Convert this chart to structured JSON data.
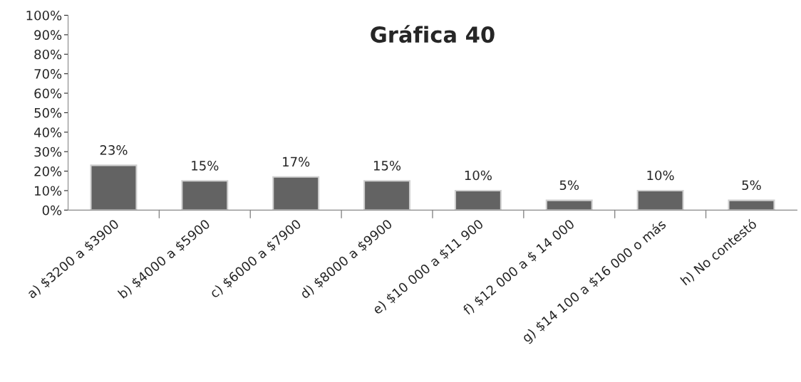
{
  "chart_data": {
    "type": "bar",
    "title": "Gráfica 40",
    "categories": [
      "a) $3200 a $3900",
      "b) $4000 a $5900",
      "c) $6000 a $7900",
      "d) $8000 a $9900",
      "e) $10 000 a $11 900",
      "f) $12 000 a $ 14 000",
      "g) $14 100 a $16 000 o más",
      "h) No contestó"
    ],
    "values": [
      23,
      15,
      17,
      15,
      10,
      5,
      10,
      5
    ],
    "value_labels": [
      "23%",
      "15%",
      "17%",
      "15%",
      "10%",
      "5%",
      "10%",
      "5%"
    ],
    "color": "#636363",
    "ylim": [
      0,
      100
    ],
    "yticks": [
      {
        "value": 0,
        "label": "0%"
      },
      {
        "value": 10,
        "label": "10%"
      },
      {
        "value": 20,
        "label": "20%"
      },
      {
        "value": 30,
        "label": "30%"
      },
      {
        "value": 40,
        "label": "40%"
      },
      {
        "value": 50,
        "label": "50%"
      },
      {
        "value": 60,
        "label": "60%"
      },
      {
        "value": 70,
        "label": "70%"
      },
      {
        "value": 80,
        "label": "80%"
      },
      {
        "value": 90,
        "label": "90%"
      },
      {
        "value": 100,
        "label": "100%"
      }
    ],
    "grid": false,
    "legend": false
  }
}
